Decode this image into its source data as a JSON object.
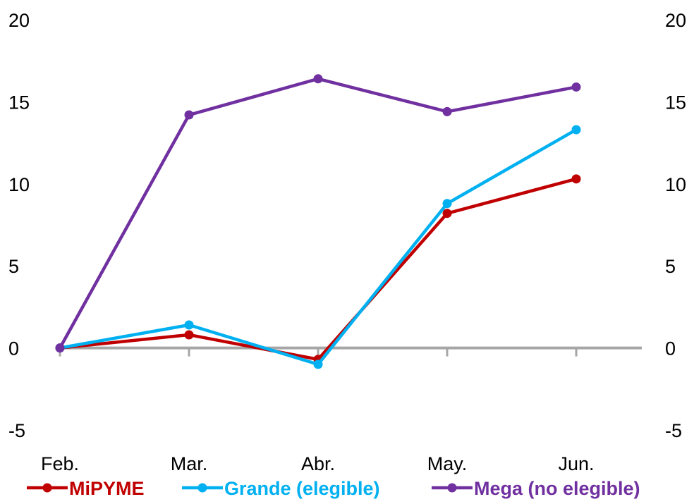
{
  "chart_data": {
    "type": "line",
    "categories": [
      "Feb.",
      "Mar.",
      "Abr.",
      "May.",
      "Jun."
    ],
    "series": [
      {
        "name": "MiPYME",
        "color": "#C00000",
        "values": [
          0,
          0.8,
          -0.7,
          8.2,
          10.3
        ]
      },
      {
        "name": "Grande (elegible)",
        "color": "#00B0F0",
        "values": [
          0,
          1.4,
          -1.0,
          8.8,
          13.3
        ]
      },
      {
        "name": "Mega (no elegible)",
        "color": "#7030A0",
        "values": [
          0,
          14.2,
          16.4,
          14.4,
          15.9
        ]
      }
    ],
    "ylim": [
      -5,
      20
    ],
    "yticks": [
      "20",
      "15",
      "10",
      "5",
      "0",
      "-5"
    ],
    "ytick_values": [
      20,
      15,
      10,
      5,
      0,
      -5
    ],
    "zero_line_color": "#A6A6A6",
    "grid": false,
    "legend": "bottom"
  }
}
